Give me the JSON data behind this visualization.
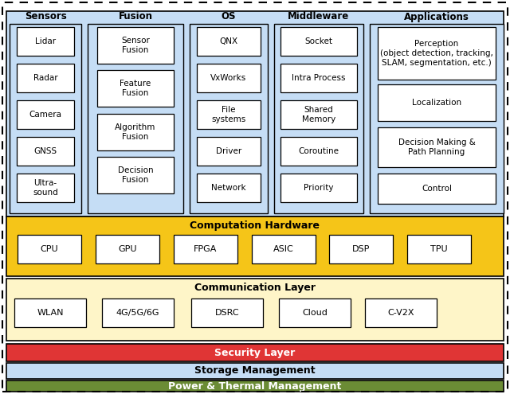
{
  "bg_color": "#ffffff",
  "outer_dash": [
    5,
    4
  ],
  "top_bg": "#c5ddf5",
  "col_bg": "#c5ddf5",
  "comp_bg": "#f5c518",
  "comm_bg": "#fef5c8",
  "security_bg": "#e03535",
  "storage_bg": "#c5ddf5",
  "power_bg": "#6b8c35",
  "white_box": "#ffffff",
  "section_headers": [
    "Sensors",
    "Fusion",
    "OS",
    "Middleware",
    "Applications"
  ],
  "sensors_items": [
    "Lidar",
    "Radar",
    "Camera",
    "GNSS",
    "Ultra-\nsound"
  ],
  "fusion_items": [
    "Sensor\nFusion",
    "Feature\nFusion",
    "Algorithm\nFusion",
    "Decision\nFusion"
  ],
  "os_items": [
    "QNX",
    "VxWorks",
    "File\nsystems",
    "Driver",
    "Network"
  ],
  "mw_items": [
    "Socket",
    "Intra Process",
    "Shared\nMemory",
    "Coroutine",
    "Priority"
  ],
  "app_items": [
    "Perception\n(object detection, tracking,\nSLAM, segmentation, etc.)",
    "Localization",
    "Decision Making &\nPath Planning",
    "Control"
  ],
  "comp_items": [
    "CPU",
    "GPU",
    "FPGA",
    "ASIC",
    "DSP",
    "TPU"
  ],
  "comm_items": [
    "WLAN",
    "4G/5G/6G",
    "DSRC",
    "Cloud",
    "C-V2X"
  ],
  "comp_title": "Computation Hardware",
  "comm_title": "Communication Layer",
  "security_title": "Security Layer",
  "storage_title": "Storage Management",
  "power_title": "Power & Thermal Management"
}
